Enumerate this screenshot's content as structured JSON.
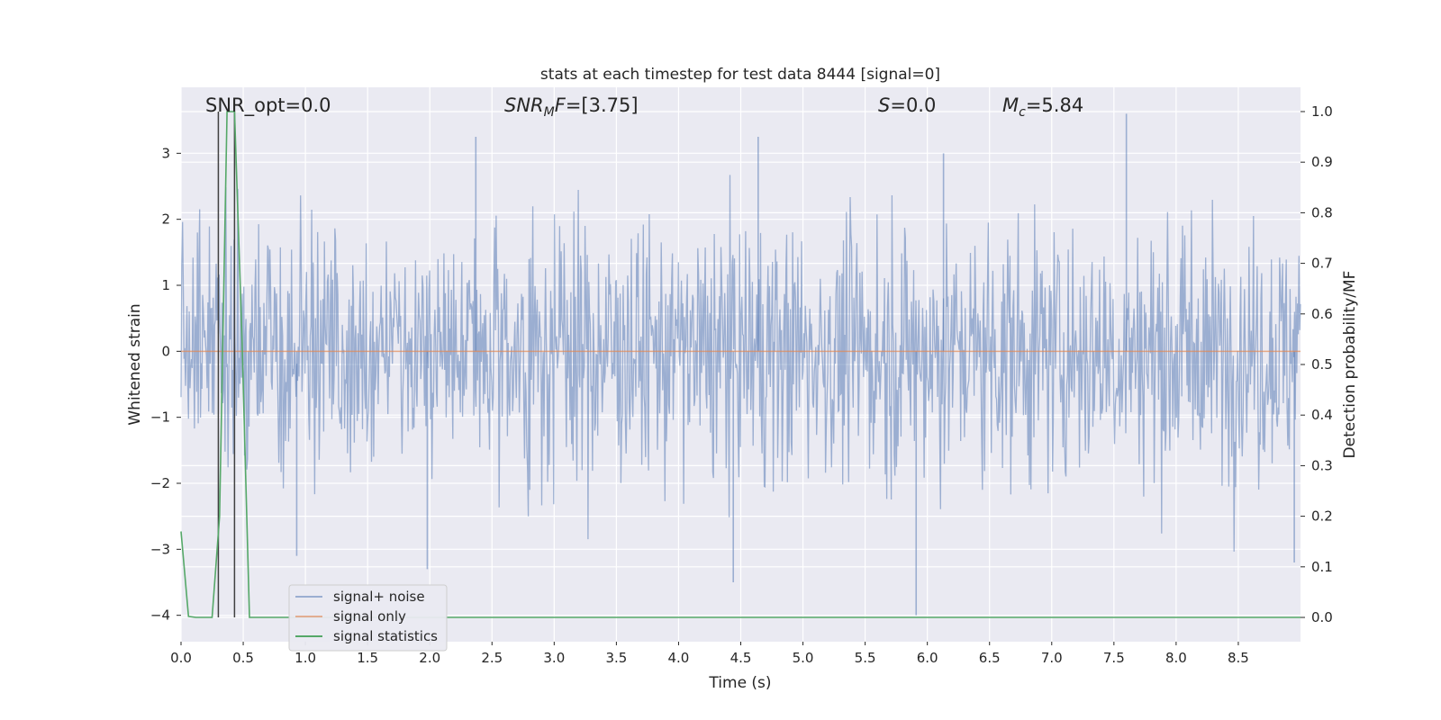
{
  "chart_data": {
    "type": "line",
    "title": "stats at each timestep for test data 8444 [signal=0]",
    "xlabel": "Time (s)",
    "ylabel": "Whitened strain",
    "y2label": "Detection probability/MF",
    "xlim": [
      0.0,
      9.0
    ],
    "ylim": [
      -4.4,
      4.0
    ],
    "y2lim": [
      -0.048,
      1.048
    ],
    "xticks": [
      "0.0",
      "0.5",
      "1.0",
      "1.5",
      "2.0",
      "2.5",
      "3.0",
      "3.5",
      "4.0",
      "4.5",
      "5.0",
      "5.5",
      "6.0",
      "6.5",
      "7.0",
      "7.5",
      "8.0",
      "8.5"
    ],
    "yticks": [
      "−4",
      "−3",
      "−2",
      "−1",
      "0",
      "1",
      "2",
      "3"
    ],
    "y2ticks": [
      "0.0",
      "0.1",
      "0.2",
      "0.3",
      "0.4",
      "0.5",
      "0.6",
      "0.7",
      "0.8",
      "0.9",
      "1.0"
    ],
    "grid": true,
    "background": "#eaeaf2",
    "annotations": {
      "snr_opt": "SNR_opt=0.0",
      "snr_mf_sym": "SNR",
      "snr_mf_sub": "M",
      "snr_mf_f": "F",
      "snr_mf_val": "=[3.75]",
      "s_sym": "S",
      "s_val": "=0.0",
      "mc_sym": "M",
      "mc_sub": "c",
      "mc_val": "=5.84"
    },
    "legend": {
      "placement": "lower-left",
      "entries": [
        "signal+ noise",
        "signal only",
        "signal statistics"
      ]
    },
    "series": [
      {
        "name": "signal+ noise",
        "color": "#4c72b0",
        "alpha": 0.5,
        "description": "whitened noise, roughly ±1.5 with peaks to about ±3.5",
        "peaks": [
          {
            "t": 0.93,
            "v": -3.1
          },
          {
            "t": 1.98,
            "v": -3.3
          },
          {
            "t": 2.37,
            "v": 3.25
          },
          {
            "t": 4.44,
            "v": -3.5
          },
          {
            "t": 4.64,
            "v": 3.25
          },
          {
            "t": 5.91,
            "v": -4.0
          },
          {
            "t": 6.13,
            "v": 3.0
          },
          {
            "t": 7.6,
            "v": 3.6
          },
          {
            "t": 8.95,
            "v": -3.2
          }
        ]
      },
      {
        "name": "signal only",
        "color": "#dd8452",
        "x": [
          0.0,
          9.0
        ],
        "y": [
          0.0,
          0.0
        ]
      },
      {
        "name": "signal statistics",
        "color": "#55a868",
        "axis": "right",
        "x": [
          0.0,
          0.06,
          0.12,
          0.2,
          0.25,
          0.31,
          0.37,
          0.43,
          0.49,
          0.55,
          1.0,
          3.0,
          5.0,
          7.0,
          9.0
        ],
        "y": [
          0.17,
          0.002,
          0.0,
          0.0,
          0.0,
          0.2,
          1.0,
          1.0,
          0.55,
          0.0,
          0.0,
          0.0,
          0.0,
          0.0,
          0.0
        ]
      }
    ],
    "vlines": {
      "color": "#404040",
      "x": [
        0.3,
        0.43
      ]
    }
  }
}
